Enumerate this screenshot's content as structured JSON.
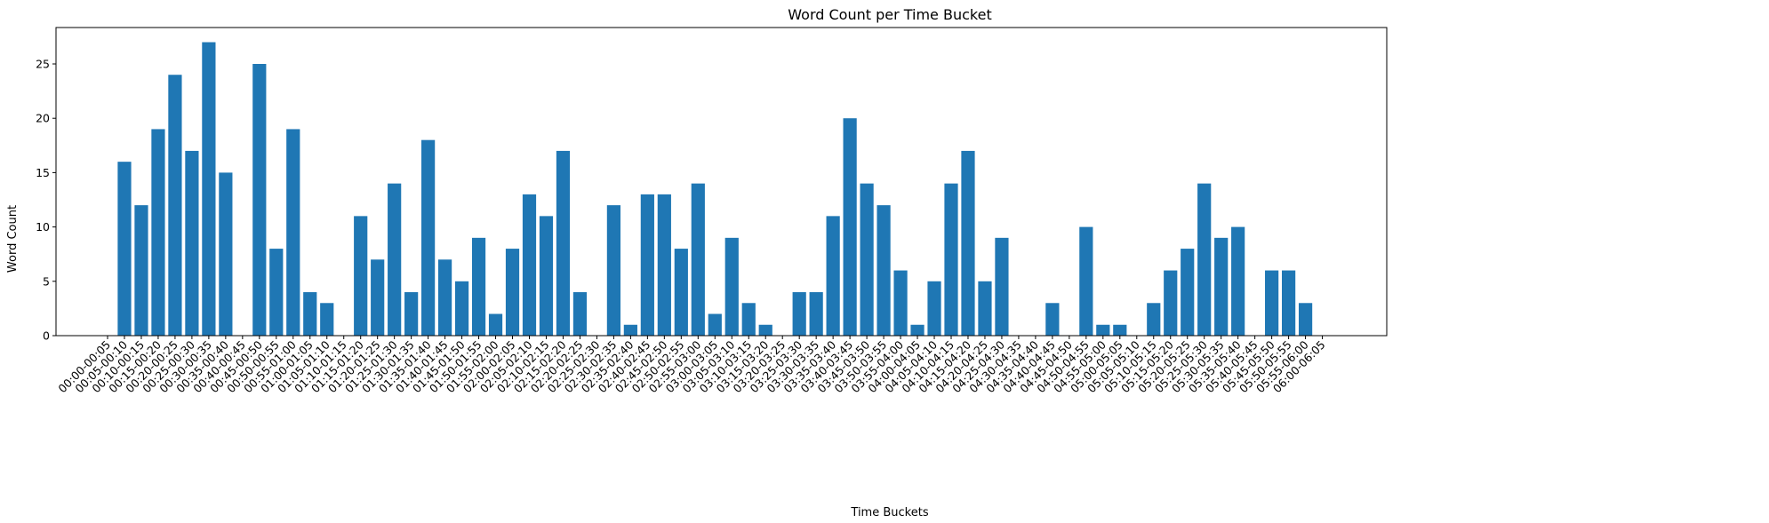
{
  "chart_data": {
    "type": "bar",
    "title": "Word Count per Time Bucket",
    "xlabel": "Time Buckets",
    "ylabel": "Word Count",
    "ylim": [
      0,
      28.35
    ],
    "yticks": [
      0,
      5,
      10,
      15,
      20,
      25
    ],
    "grid": false,
    "bar_color": "#1f77b4",
    "categories": [
      "00:00-00:05",
      "00:05-00:10",
      "00:10-00:15",
      "00:15-00:20",
      "00:20-00:25",
      "00:25-00:30",
      "00:30-00:35",
      "00:35-00:40",
      "00:40-00:45",
      "00:45-00:50",
      "00:50-00:55",
      "00:55-01:00",
      "01:00-01:05",
      "01:05-01:10",
      "01:10-01:15",
      "01:15-01:20",
      "01:20-01:25",
      "01:25-01:30",
      "01:30-01:35",
      "01:35-01:40",
      "01:40-01:45",
      "01:45-01:50",
      "01:50-01:55",
      "01:55-02:00",
      "02:00-02:05",
      "02:05-02:10",
      "02:10-02:15",
      "02:15-02:20",
      "02:20-02:25",
      "02:25-02:30",
      "02:30-02:35",
      "02:35-02:40",
      "02:40-02:45",
      "02:45-02:50",
      "02:50-02:55",
      "02:55-03:00",
      "03:00-03:05",
      "03:05-03:10",
      "03:10-03:15",
      "03:15-03:20",
      "03:20-03:25",
      "03:25-03:30",
      "03:30-03:35",
      "03:35-03:40",
      "03:40-03:45",
      "03:45-03:50",
      "03:50-03:55",
      "03:55-04:00",
      "04:00-04:05",
      "04:05-04:10",
      "04:10-04:15",
      "04:15-04:20",
      "04:20-04:25",
      "04:25-04:30",
      "04:30-04:35",
      "04:35-04:40",
      "04:40-04:45",
      "04:45-04:50",
      "04:50-04:55",
      "04:55-05:00",
      "05:00-05:05",
      "05:05-05:10",
      "05:10-05:15",
      "05:15-05:20",
      "05:20-05:25",
      "05:25-05:30",
      "05:30-05:35",
      "05:35-05:40",
      "05:40-05:45",
      "05:45-05:50",
      "05:50-05:55",
      "05:55-06:00",
      "06:00-06:05"
    ],
    "values": [
      0,
      16,
      12,
      19,
      24,
      17,
      27,
      15,
      0,
      25,
      8,
      19,
      4,
      3,
      0,
      11,
      7,
      14,
      4,
      18,
      7,
      5,
      9,
      2,
      8,
      13,
      11,
      17,
      4,
      0,
      12,
      1,
      13,
      13,
      8,
      14,
      2,
      9,
      3,
      1,
      0,
      4,
      4,
      11,
      20,
      14,
      12,
      6,
      1,
      5,
      14,
      17,
      5,
      9,
      0,
      0,
      3,
      0,
      10,
      1,
      1,
      0,
      3,
      6,
      8,
      14,
      9,
      10,
      0,
      6,
      6,
      3,
      0
    ]
  }
}
